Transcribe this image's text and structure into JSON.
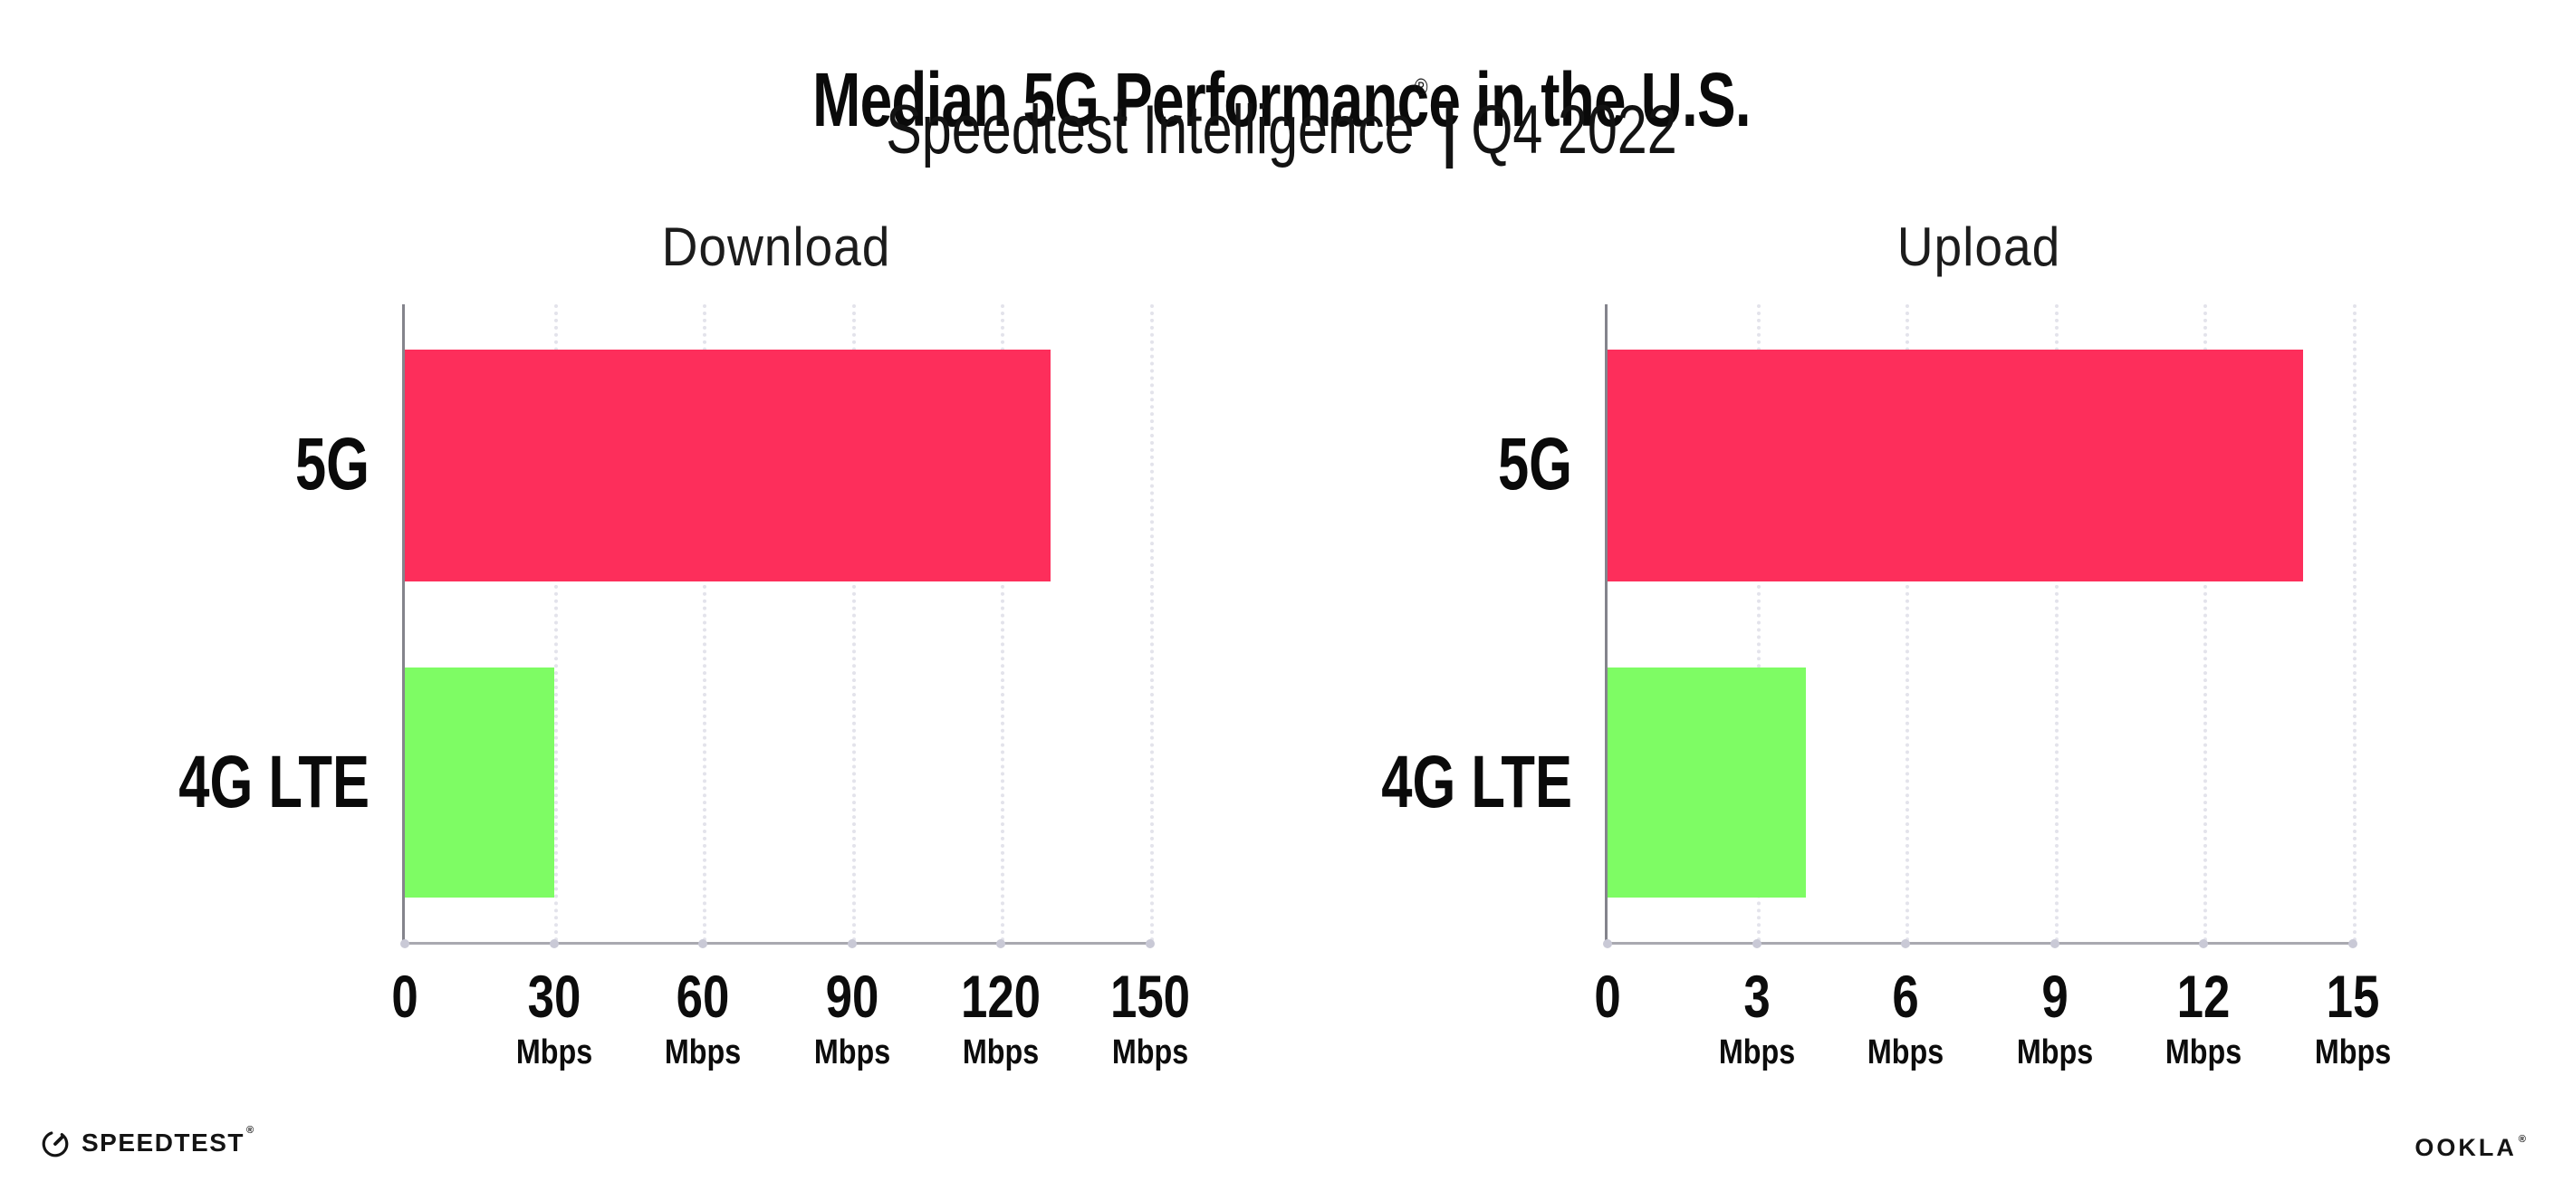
{
  "header": {
    "title": "Median 5G Performance in the U.S.",
    "subtitle_brand": "Speedtest Intelligence",
    "subtitle_registered_mark": "®",
    "subtitle_separator": "|",
    "subtitle_period": "Q4 2022"
  },
  "colors": {
    "bar_5g": "#FD2E5B",
    "bar_4g_lte": "#7EFC64",
    "axis_y": "#84848C",
    "axis_x": "#A9A9B0",
    "gridline": "#E3E3EB",
    "text": "#111111"
  },
  "chart_data": [
    {
      "type": "bar",
      "orientation": "horizontal",
      "title": "Download",
      "categories": [
        "5G",
        "4G LTE"
      ],
      "values": [
        130,
        30
      ],
      "unit": "Mbps",
      "xlim": [
        0,
        150
      ],
      "grid": "dotted-vertical",
      "legend": "none",
      "bar_colors": [
        "#FD2E5B",
        "#7EFC64"
      ],
      "ticks": [
        {
          "v": 0,
          "label": "0",
          "unit": ""
        },
        {
          "v": 30,
          "label": "30",
          "unit": "Mbps"
        },
        {
          "v": 60,
          "label": "60",
          "unit": "Mbps"
        },
        {
          "v": 90,
          "label": "90",
          "unit": "Mbps"
        },
        {
          "v": 120,
          "label": "120",
          "unit": "Mbps"
        },
        {
          "v": 150,
          "label": "150",
          "unit": "Mbps"
        }
      ]
    },
    {
      "type": "bar",
      "orientation": "horizontal",
      "title": "Upload",
      "categories": [
        "5G",
        "4G LTE"
      ],
      "values": [
        14,
        4
      ],
      "unit": "Mbps",
      "xlim": [
        0,
        15
      ],
      "grid": "dotted-vertical",
      "legend": "none",
      "bar_colors": [
        "#FD2E5B",
        "#7EFC64"
      ],
      "ticks": [
        {
          "v": 0,
          "label": "0",
          "unit": ""
        },
        {
          "v": 3,
          "label": "3",
          "unit": "Mbps"
        },
        {
          "v": 6,
          "label": "6",
          "unit": "Mbps"
        },
        {
          "v": 9,
          "label": "9",
          "unit": "Mbps"
        },
        {
          "v": 12,
          "label": "12",
          "unit": "Mbps"
        },
        {
          "v": 15,
          "label": "15",
          "unit": "Mbps"
        }
      ]
    }
  ],
  "footer": {
    "speedtest_logo_text": "SPEEDTEST",
    "speedtest_trademark": "®",
    "ookla_logo_text": "OOKLA",
    "ookla_trademark": "®"
  }
}
